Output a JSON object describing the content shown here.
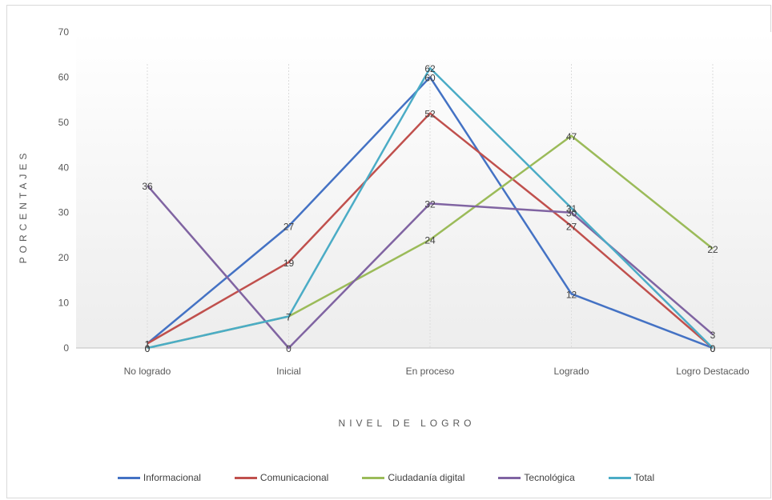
{
  "chart_data": {
    "type": "line",
    "xlabel": "NIVEL DE LOGRO",
    "ylabel": "PORCENTAJES",
    "ylim": [
      0,
      70
    ],
    "yticks": [
      "0",
      "10",
      "20",
      "30",
      "40",
      "50",
      "60",
      "70"
    ],
    "categories": [
      "No logrado",
      "Inicial",
      "En proceso",
      "Logrado",
      "Logro Destacado"
    ],
    "grid": "vertical gridlines at categories",
    "legend_position": "bottom",
    "series": [
      {
        "name": "Informacional",
        "color": "#4472c4",
        "values": [
          1,
          27,
          60,
          12,
          0
        ],
        "labels": [
          "1",
          "27",
          "60",
          "12",
          "0"
        ]
      },
      {
        "name": "Comunicacional",
        "color": "#c0504d",
        "values": [
          1,
          19,
          52,
          27,
          0
        ],
        "labels": [
          "1",
          "19",
          "52",
          "27",
          "0"
        ]
      },
      {
        "name": "Ciudadanía digital",
        "color": "#9bbb59",
        "values": [
          0,
          7,
          24,
          47,
          22
        ],
        "labels": [
          "0",
          "7",
          "24",
          "47",
          "22"
        ]
      },
      {
        "name": "Tecnológica",
        "color": "#8064a2",
        "values": [
          36,
          0,
          32,
          30,
          3
        ],
        "labels": [
          "36",
          "0",
          "32",
          "30",
          "3"
        ]
      },
      {
        "name": "Total",
        "color": "#4bacc6",
        "values": [
          0,
          7,
          62,
          31,
          0
        ],
        "labels": [
          "0",
          "7",
          "62",
          "31",
          "0"
        ]
      }
    ]
  }
}
